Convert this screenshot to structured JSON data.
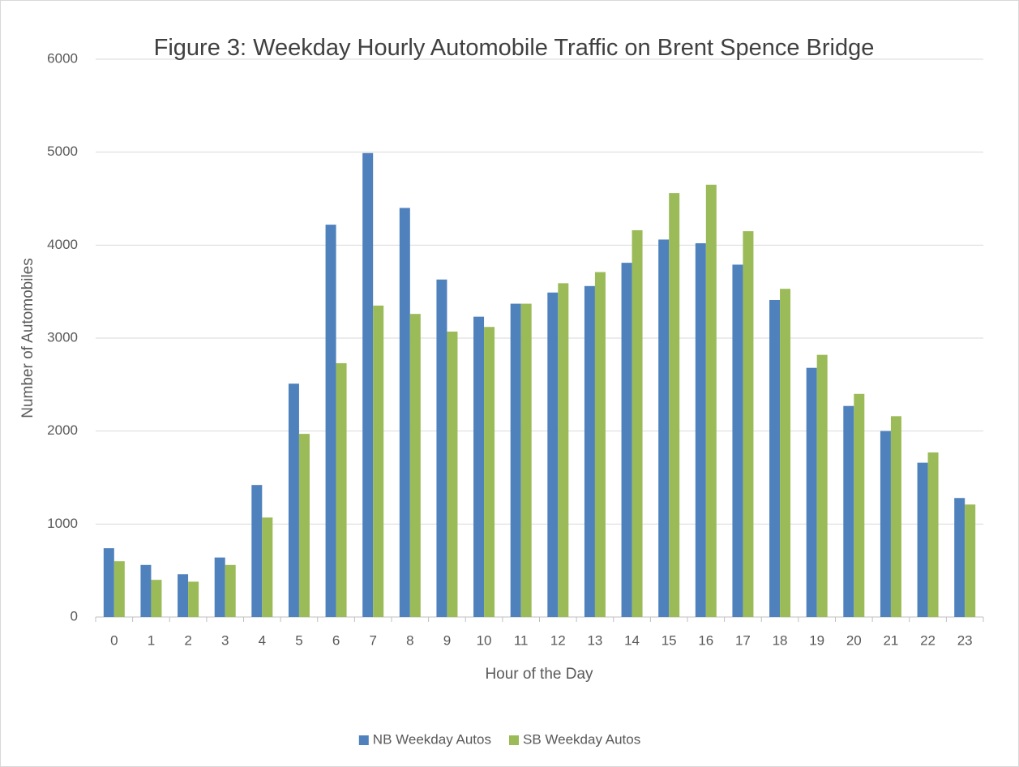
{
  "chart_data": {
    "type": "bar",
    "title": "Figure 3: Weekday Hourly Automobile Traffic on Brent Spence Bridge",
    "x_label": "Hour of the Day",
    "y_label": "Number of Automobiles",
    "categories": [
      "0",
      "1",
      "2",
      "3",
      "4",
      "5",
      "6",
      "7",
      "8",
      "9",
      "10",
      "11",
      "12",
      "13",
      "14",
      "15",
      "16",
      "17",
      "18",
      "19",
      "20",
      "21",
      "22",
      "23"
    ],
    "series": [
      {
        "name": "NB Weekday Autos",
        "color": "#4f81bd",
        "values": [
          740,
          560,
          460,
          640,
          1420,
          2510,
          4220,
          4990,
          4400,
          3630,
          3230,
          3370,
          3490,
          3560,
          3810,
          4060,
          4020,
          3790,
          3410,
          2680,
          2270,
          2000,
          1660,
          1280
        ]
      },
      {
        "name": "SB Weekday Autos",
        "color": "#9bbb59",
        "values": [
          600,
          400,
          380,
          560,
          1070,
          1970,
          2730,
          3350,
          3260,
          3070,
          3120,
          3370,
          3590,
          3710,
          4160,
          4560,
          4650,
          4150,
          3530,
          2820,
          2400,
          2160,
          1770,
          1210
        ]
      }
    ],
    "ylim": [
      0,
      6000
    ],
    "yticks": [
      0,
      1000,
      2000,
      3000,
      4000,
      5000,
      6000
    ],
    "grid": true,
    "legend": "bottom"
  }
}
